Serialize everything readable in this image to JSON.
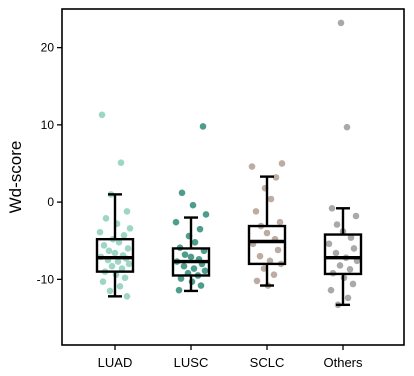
{
  "chart_data": {
    "type": "box",
    "title": "",
    "xlabel": "",
    "ylabel": "Wd-score",
    "ylim": [
      -18.5,
      25.0
    ],
    "yticks": [
      -10,
      0,
      10,
      20
    ],
    "ytick_labels": [
      "-10",
      "0",
      "10",
      "20"
    ],
    "grid": false,
    "legend": "none",
    "categories": [
      "LUAD",
      "LUSC",
      "SCLC",
      "Others"
    ],
    "colors": [
      "#8ccfbc",
      "#2e8b78",
      "#b09e91",
      "#9a9a9a"
    ],
    "boxes": [
      {
        "category": "LUAD",
        "whisker_low": -12.2,
        "q1": -9.0,
        "median": -7.2,
        "q3": -4.8,
        "whisker_high": 1.0
      },
      {
        "category": "LUSC",
        "whisker_low": -11.5,
        "q1": -9.5,
        "median": -7.7,
        "q3": -6.0,
        "whisker_high": -2.0
      },
      {
        "category": "SCLC",
        "whisker_low": -10.8,
        "q1": -8.0,
        "median": -5.1,
        "q3": -3.1,
        "whisker_high": 3.3
      },
      {
        "category": "Others",
        "whisker_low": -13.3,
        "q1": -9.3,
        "median": -7.2,
        "q3": -4.2,
        "whisker_high": -0.8
      }
    ],
    "points": [
      {
        "category": "LUAD",
        "values": [
          11.3,
          5.1,
          1.0,
          -1.2,
          -2.1,
          -2.8,
          -3.4,
          -3.9,
          -4.3,
          -4.8,
          -5.2,
          -5.6,
          -6.0,
          -6.3,
          -6.6,
          -6.9,
          -7.1,
          -7.3,
          -7.5,
          -7.7,
          -8.0,
          -8.3,
          -8.6,
          -9.0,
          -9.4,
          -9.8,
          -10.3,
          -10.9,
          -11.5,
          -12.2
        ]
      },
      {
        "category": "LUSC",
        "values": [
          9.8,
          1.2,
          -0.4,
          -1.6,
          -2.6,
          -3.5,
          -4.4,
          -5.2,
          -5.9,
          -6.3,
          -6.8,
          -7.1,
          -7.4,
          -7.7,
          -8.0,
          -8.3,
          -8.6,
          -8.9,
          -9.2,
          -9.5,
          -9.9,
          -10.3,
          -10.8,
          -11.4
        ]
      },
      {
        "category": "SCLC",
        "values": [
          5.0,
          4.6,
          3.2,
          1.8,
          0.4,
          -1.2,
          -2.6,
          -3.1,
          -4.0,
          -4.8,
          -5.4,
          -6.2,
          -7.0,
          -7.6,
          -8.0,
          -8.6,
          -9.4,
          -10.2,
          -10.8
        ]
      },
      {
        "category": "Others",
        "values": [
          23.2,
          9.7,
          -0.8,
          -1.8,
          -2.9,
          -3.8,
          -4.6,
          -5.4,
          -6.0,
          -6.6,
          -7.2,
          -7.6,
          -8.2,
          -8.7,
          -9.2,
          -9.8,
          -10.6,
          -11.4,
          -12.4,
          -13.3
        ]
      }
    ]
  }
}
